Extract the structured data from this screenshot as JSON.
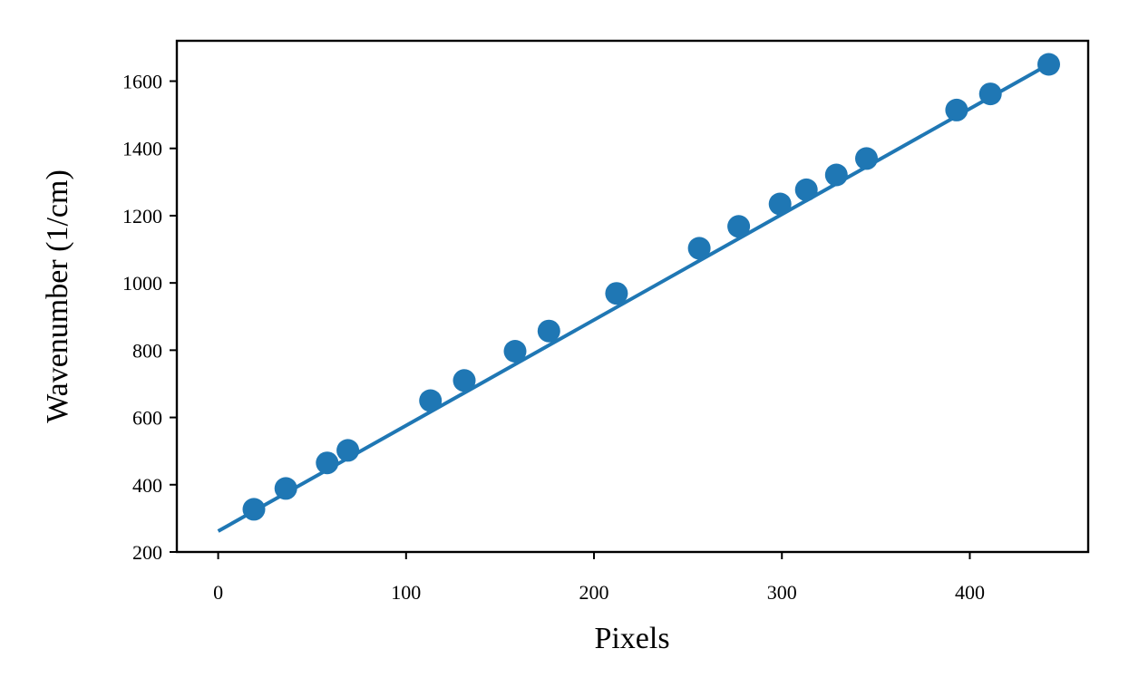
{
  "chart_data": {
    "type": "scatter",
    "title": "",
    "xlabel": "Pixels",
    "ylabel": "Wavenumber (1/cm)",
    "xlim": [
      -22,
      463
    ],
    "ylim": [
      200,
      1720
    ],
    "x_ticks": [
      0,
      100,
      200,
      300,
      400
    ],
    "y_ticks": [
      200,
      400,
      600,
      800,
      1000,
      1200,
      1400,
      1600
    ],
    "grid": false,
    "color": "#1f77b4",
    "series": [
      {
        "kind": "points",
        "x": [
          19,
          36,
          58,
          69,
          113,
          131,
          158,
          176,
          212,
          256,
          277,
          299,
          313,
          329,
          345,
          393,
          411,
          442
        ],
        "y": [
          327,
          389,
          465,
          502,
          650,
          710,
          797,
          857,
          969,
          1103,
          1168,
          1235,
          1277,
          1321,
          1370,
          1514,
          1562,
          1650
        ]
      },
      {
        "kind": "fit-line",
        "x": [
          0,
          442
        ],
        "y": [
          262,
          1650
        ]
      }
    ]
  }
}
